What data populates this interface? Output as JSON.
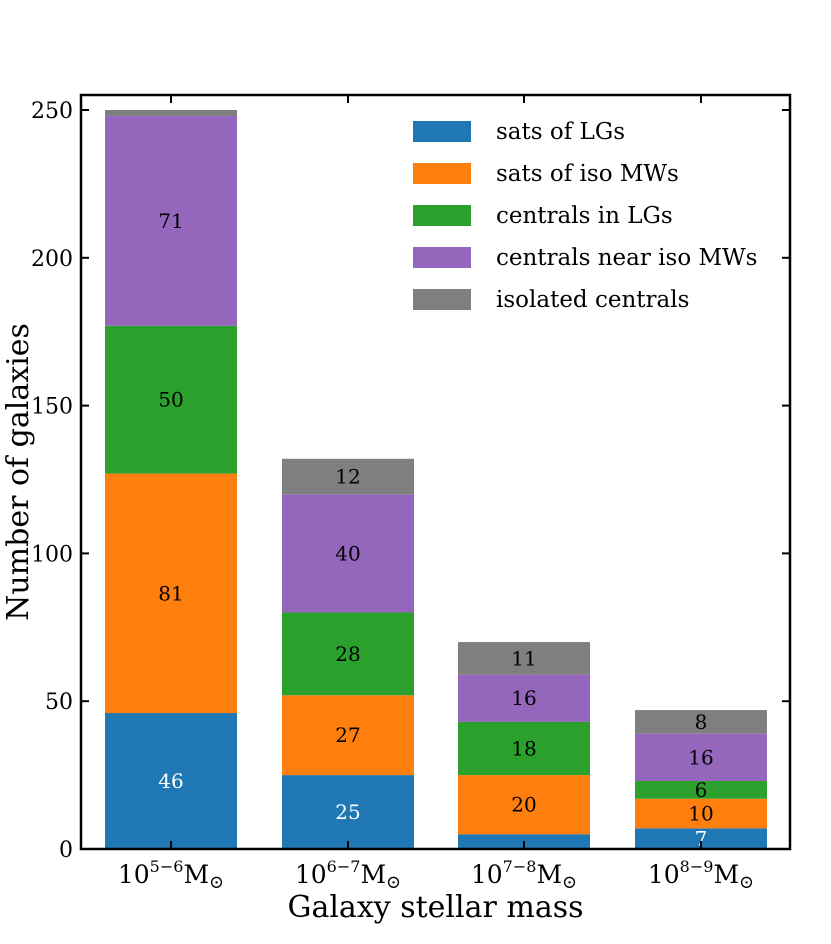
{
  "chart_data": {
    "type": "bar",
    "stacked": true,
    "title": "",
    "xlabel": "Galaxy stellar mass",
    "ylabel": "Number of galaxies",
    "categories": [
      {
        "base": "10",
        "sup": "5−6",
        "unit": "M",
        "unit_symbol": "⊙"
      },
      {
        "base": "10",
        "sup": "6−7",
        "unit": "M",
        "unit_symbol": "⊙"
      },
      {
        "base": "10",
        "sup": "7−8",
        "unit": "M",
        "unit_symbol": "⊙"
      },
      {
        "base": "10",
        "sup": "8−9",
        "unit": "M",
        "unit_symbol": "⊙"
      }
    ],
    "ylim": [
      0,
      255
    ],
    "yticks": [
      0,
      50,
      100,
      150,
      200,
      250
    ],
    "grid": false,
    "legend_position": "top-right",
    "series": [
      {
        "name": "sats of LGs",
        "color": "#1f77b4",
        "label_color": "#ffffff",
        "values": [
          46,
          25,
          5,
          7
        ],
        "labels": [
          "46",
          "25",
          "",
          "7"
        ]
      },
      {
        "name": "sats of iso MWs",
        "color": "#ff7f0e",
        "label_color": "#000000",
        "values": [
          81,
          27,
          20,
          10
        ],
        "labels": [
          "81",
          "27",
          "20",
          "10"
        ]
      },
      {
        "name": "centrals in LGs",
        "color": "#2ca02c",
        "label_color": "#000000",
        "values": [
          50,
          28,
          18,
          6
        ],
        "labels": [
          "50",
          "28",
          "18",
          "6"
        ]
      },
      {
        "name": "centrals near iso MWs",
        "color": "#9467bd",
        "label_color": "#000000",
        "values": [
          71,
          40,
          16,
          16
        ],
        "labels": [
          "71",
          "40",
          "16",
          "16"
        ]
      },
      {
        "name": "isolated centrals",
        "color": "#7f7f7f",
        "label_color": "#000000",
        "values": [
          2,
          12,
          11,
          8
        ],
        "labels": [
          "",
          "12",
          "11",
          "8"
        ]
      }
    ]
  }
}
